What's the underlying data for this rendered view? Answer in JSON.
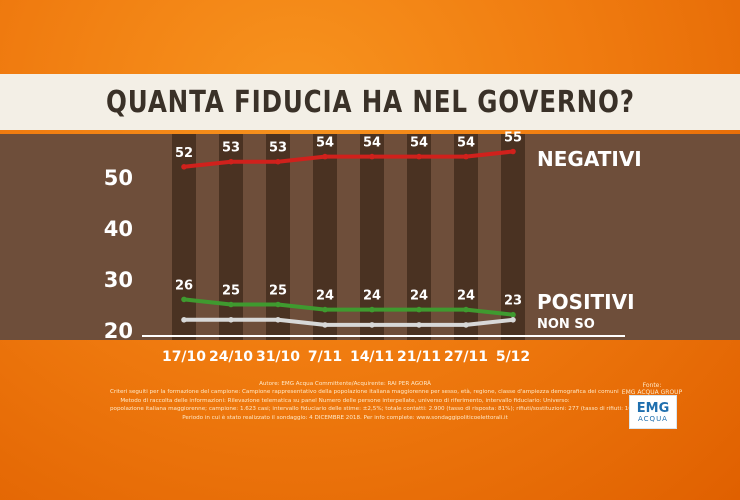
{
  "chart_data": {
    "type": "line",
    "title": "QUANTA FIDUCIA HA NEL GOVERNO?",
    "categories": [
      "17/10",
      "24/10",
      "31/10",
      "7/11",
      "14/11",
      "21/11",
      "27/11",
      "5/12"
    ],
    "yticks": [
      20,
      30,
      40,
      50
    ],
    "ylim": [
      20,
      55
    ],
    "series": [
      {
        "name": "NEGATIVI",
        "values": [
          52,
          53,
          53,
          54,
          54,
          54,
          54,
          55
        ],
        "color": "#d0211c"
      },
      {
        "name": "POSITIVI",
        "values": [
          26,
          25,
          25,
          24,
          24,
          24,
          24,
          23
        ],
        "color": "#3f9a2f"
      },
      {
        "name": "NON SO",
        "values": [
          22,
          22,
          22,
          21,
          21,
          21,
          21,
          22
        ],
        "color": "#d8d8d8"
      }
    ],
    "labeled_series": [
      "NEGATIVI",
      "POSITIVI"
    ]
  },
  "info": {
    "lines": [
      "Autore: EMG Acqua Committente/Acquirente: RAI PER AGORÀ",
      "Criteri seguiti per la formazione del campione: Campione rappresentativo della popolazione italiana maggiorenne per sesso, età, regione, classe d'ampiezza demografica dei comuni",
      "Metodo di raccolta delle informazioni: Rilevazione telematica su panel Numero delle persone interpellate, universo di riferimento, intervallo fiduciario: Universo:",
      "popolazione italiana maggiorenne; campione: 1.623 casi; intervallo fiduciario delle stime: ±2,5%; totale contatti: 2.900 (tasso di risposta: 81%); rifiuti/sostituzioni: 277 (tasso di rifiuti: 10%).",
      "Periodo in cui è stato realizzato il sondaggio: 4 DICEMBRE 2018. Per info complete: www.sondaggipoliticoelettorali.it"
    ]
  },
  "source": {
    "label": "Fonte:",
    "name": "EMG ACQUA GROUP"
  },
  "logo": {
    "line1": "EMG",
    "line2": "ACQUA"
  }
}
